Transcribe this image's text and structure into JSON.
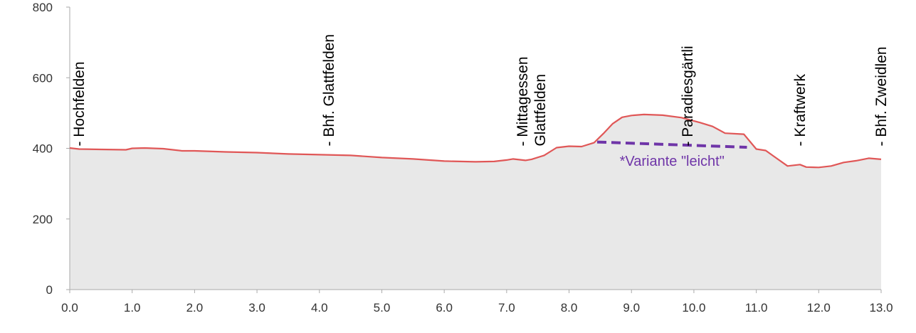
{
  "chart_data": {
    "type": "area",
    "title": "",
    "xlabel": "",
    "ylabel": "",
    "xlim": [
      0,
      13
    ],
    "ylim": [
      0,
      800
    ],
    "x_ticks": [
      "0.0",
      "1.0",
      "2.0",
      "3.0",
      "4.0",
      "5.0",
      "6.0",
      "7.0",
      "8.0",
      "9.0",
      "10.0",
      "11.0",
      "12.0",
      "13.0"
    ],
    "y_ticks": [
      "0",
      "200",
      "400",
      "600",
      "800"
    ],
    "grid": false,
    "colors": {
      "line": "#e05757",
      "fill": "#e8e8e8",
      "axis": "#aaaaaa",
      "annotation": "#6f35a8"
    },
    "series": [
      {
        "x": [
          0.0,
          0.15,
          0.5,
          0.9,
          1.0,
          1.2,
          1.5,
          1.8,
          2.0,
          2.5,
          3.0,
          3.5,
          4.0,
          4.5,
          5.0,
          5.5,
          6.0,
          6.5,
          6.8,
          7.0,
          7.1,
          7.3,
          7.4,
          7.6,
          7.8,
          8.0,
          8.2,
          8.4,
          8.55,
          8.7,
          8.85,
          9.0,
          9.2,
          9.5,
          9.8,
          10.1,
          10.3,
          10.5,
          10.8,
          11.0,
          11.15,
          11.3,
          11.5,
          11.7,
          11.8,
          12.0,
          12.2,
          12.4,
          12.6,
          12.8,
          13.0
        ],
        "y": [
          401,
          398,
          397,
          396,
          400,
          401,
          399,
          393,
          393,
          390,
          388,
          384,
          382,
          380,
          374,
          370,
          364,
          362,
          363,
          367,
          370,
          366,
          369,
          380,
          402,
          406,
          405,
          416,
          442,
          470,
          488,
          493,
          496,
          494,
          487,
          473,
          462,
          443,
          440,
          398,
          394,
          375,
          350,
          354,
          347,
          346,
          350,
          360,
          365,
          372,
          369
        ]
      }
    ],
    "waypoints": [
      {
        "x": 0.15,
        "lines": [
          "- Hochfelden"
        ]
      },
      {
        "x": 4.15,
        "lines": [
          "- Bhf. Glattfelden"
        ]
      },
      {
        "x": 7.25,
        "lines": [
          "- Mittagessen",
          "Glattfelden"
        ]
      },
      {
        "x": 9.9,
        "lines": [
          "- Paradiesgärtli"
        ]
      },
      {
        "x": 11.7,
        "lines": [
          "- Kraftwerk"
        ]
      },
      {
        "x": 13.0,
        "lines": [
          "- Bhf. Zweidlen"
        ]
      }
    ],
    "annotations": [
      {
        "text": "*Variante \"leicht\"",
        "segment_x": [
          8.45,
          10.85
        ],
        "segment_y": [
          418,
          403
        ]
      }
    ]
  }
}
